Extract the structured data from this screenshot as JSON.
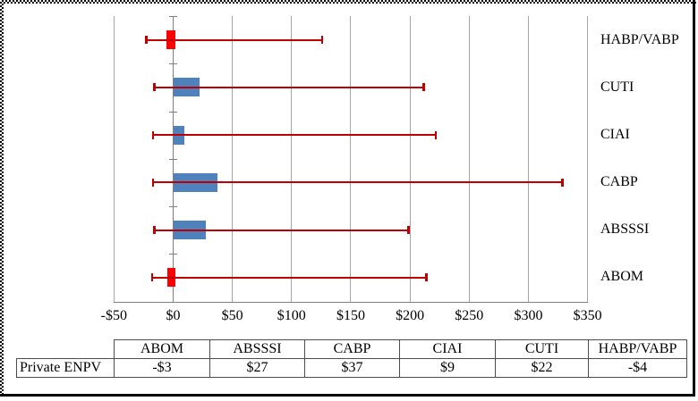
{
  "chart_data": {
    "type": "bar",
    "orientation": "horizontal",
    "title": "",
    "legend": "none",
    "grid": "vertical",
    "categories": [
      "HABP/VABP",
      "CUTI",
      "CIAI",
      "CABP",
      "ABSSSI",
      "ABOM"
    ],
    "values": [
      -4,
      22,
      9,
      37,
      27,
      -3
    ],
    "error_low": [
      -23,
      -16,
      -17,
      -17,
      -16,
      -18
    ],
    "error_high": [
      126,
      212,
      222,
      329,
      199,
      214
    ],
    "xlim": [
      -50,
      350
    ],
    "x_tick_values": [
      -50,
      0,
      50,
      100,
      150,
      200,
      250,
      300,
      350
    ],
    "x_ticks": [
      "-$50",
      "$0",
      "$50",
      "$100",
      "$150",
      "$200",
      "$250",
      "$300",
      "$350"
    ],
    "colors": {
      "bar_positive": "#4F81BD",
      "bar_negative": "#FF0000",
      "error_bar": "#C00000",
      "gridline": "#A6A6A6",
      "axis": "#808080",
      "table_border": "#4d4d4d",
      "text": "#000000"
    }
  },
  "table": {
    "row_header": "Private ENPV",
    "columns": [
      "ABOM",
      "ABSSSI",
      "CABP",
      "CIAI",
      "CUTI",
      "HABP/VABP"
    ],
    "values": [
      "-$3",
      "$27",
      "$37",
      "$9",
      "$22",
      "-$4"
    ]
  }
}
